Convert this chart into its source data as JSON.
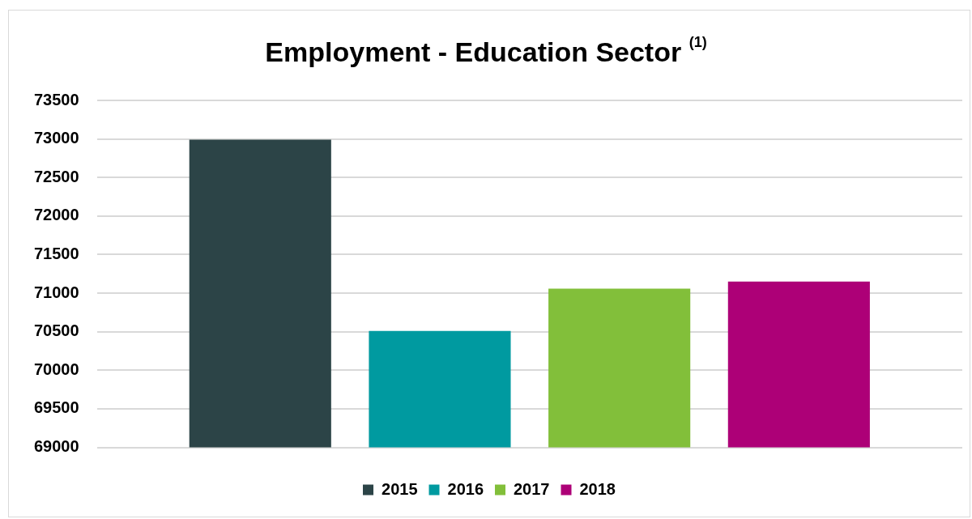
{
  "chart_data": {
    "type": "bar",
    "title": "Employment - Education Sector $^{(1)}$",
    "categories": [
      null
    ],
    "series": [
      {
        "name": "2015",
        "color": "#2c4447",
        "values": [
          72990
        ]
      },
      {
        "name": "2016",
        "color": "#009aa0",
        "values": [
          70510
        ]
      },
      {
        "name": "2017",
        "color": "#82bf3a",
        "values": [
          71060
        ]
      },
      {
        "name": "2018",
        "color": "#ad0077",
        "values": [
          71150
        ]
      }
    ],
    "ylim": [
      69000,
      73500
    ],
    "yticks": [
      69000,
      69500,
      70000,
      70500,
      71000,
      71500,
      72000,
      72500,
      73000,
      73500
    ],
    "grid": "y",
    "legend": "bottom"
  }
}
